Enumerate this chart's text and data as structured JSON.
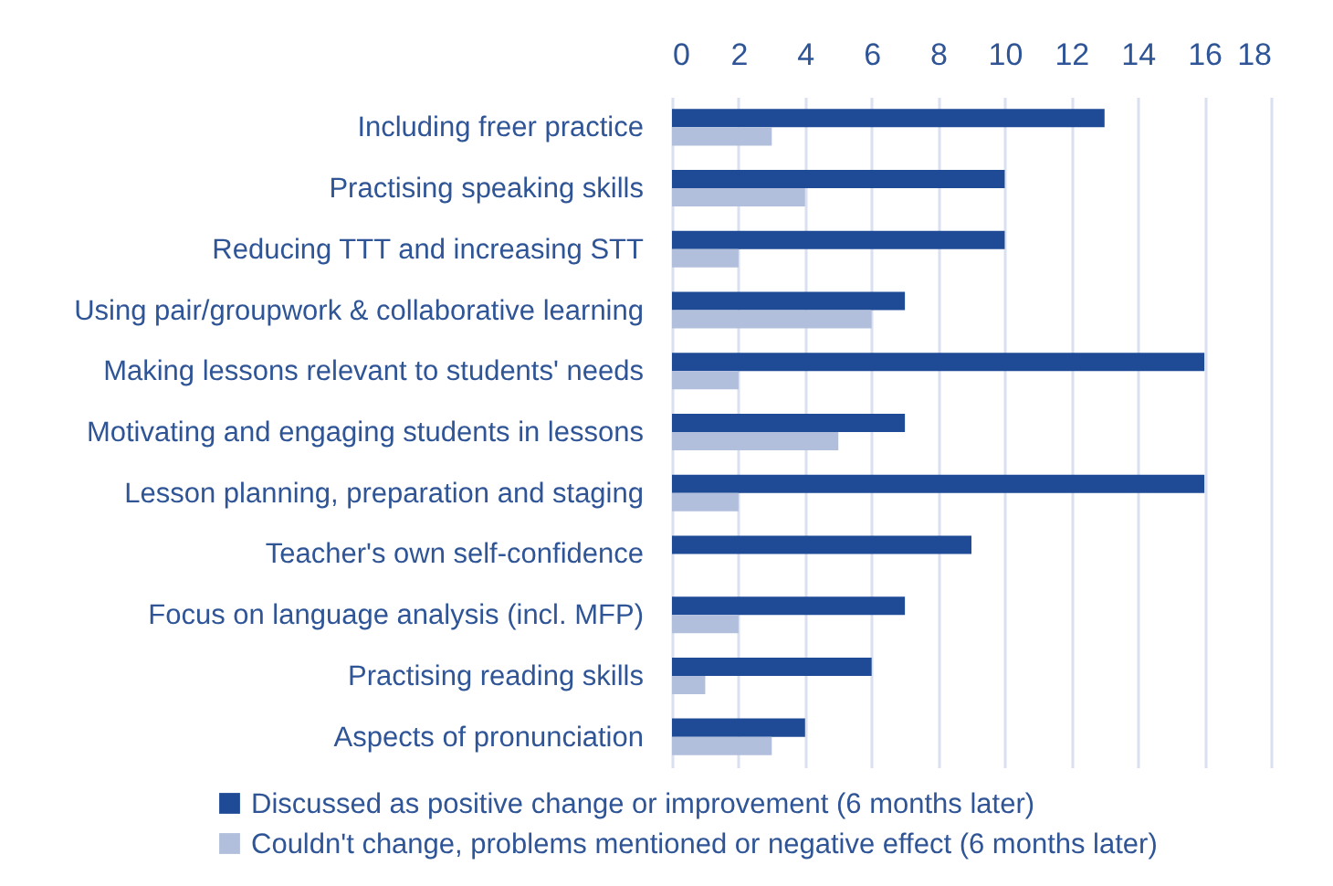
{
  "chart_data": {
    "type": "bar",
    "orientation": "horizontal",
    "categories": [
      "Including freer practice",
      "Practising speaking skills",
      "Reducing TTT and increasing STT",
      "Using pair/groupwork & collaborative learning",
      "Making lessons relevant to students' needs",
      "Motivating and engaging students in lessons",
      "Lesson planning, preparation and staging",
      "Teacher's own self-confidence",
      "Focus on language analysis (incl. MFP)",
      "Practising reading skills",
      "Aspects of pronunciation"
    ],
    "series": [
      {
        "name": "Discussed as positive change or improvement (6 months later)",
        "color": "#1f4b96",
        "values": [
          13,
          10,
          10,
          7,
          16,
          7,
          16,
          9,
          7,
          6,
          4
        ]
      },
      {
        "name": "Couldn't change, problems mentioned or negative effect (6 months later)",
        "color": "#b1bfdc",
        "values": [
          3,
          4,
          2,
          6,
          2,
          5,
          2,
          0,
          2,
          1,
          3
        ]
      }
    ],
    "xlim": [
      0,
      18
    ],
    "xticks": [
      0,
      2,
      4,
      6,
      8,
      10,
      12,
      14,
      16,
      18
    ],
    "grid": "x",
    "legend": "bottom"
  }
}
